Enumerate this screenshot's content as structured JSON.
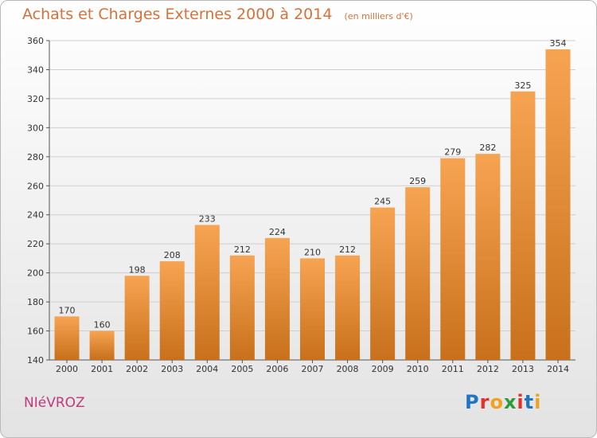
{
  "header": {
    "title": "Achats et Charges Externes 2000 à 2014",
    "subtitle": "(en milliers d'€)"
  },
  "footer": {
    "commune": "NIéVROZ",
    "logo_letters": [
      "P",
      "r",
      "o",
      "x",
      "i",
      "t",
      "i"
    ]
  },
  "colors": {
    "bar_light": "#f7a452",
    "bar_dark": "#c8701b",
    "title": "#d5713a",
    "commune": "#c0397b",
    "logo": [
      "#1f74c4",
      "#e2312b",
      "#f0a21c",
      "#2d9a3c",
      "#e2312b",
      "#1f74c4",
      "#f0a21c"
    ]
  },
  "chart_data": {
    "type": "bar",
    "categories": [
      "2000",
      "2001",
      "2002",
      "2003",
      "2004",
      "2005",
      "2006",
      "2007",
      "2008",
      "2009",
      "2010",
      "2011",
      "2012",
      "2013",
      "2014"
    ],
    "values": [
      170,
      160,
      198,
      208,
      233,
      212,
      224,
      210,
      212,
      245,
      259,
      279,
      282,
      325,
      354
    ],
    "ylim": [
      140,
      360
    ],
    "yticks": [
      140,
      160,
      180,
      200,
      220,
      240,
      260,
      280,
      300,
      320,
      340,
      360
    ],
    "grid": true,
    "title": "Achats et Charges Externes 2000 à 2014",
    "xlabel": "",
    "ylabel": ""
  }
}
